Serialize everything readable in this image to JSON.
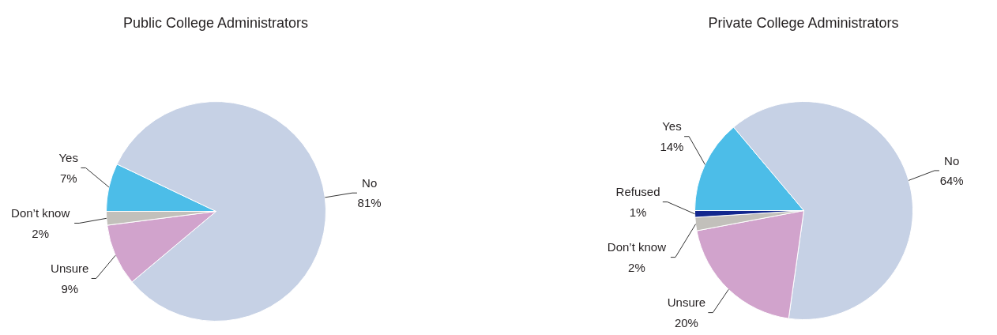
{
  "chart_data": [
    {
      "type": "pie",
      "title": "Public College Administrators",
      "categories": [
        "Yes",
        "No",
        "Unsure",
        "Don’t know"
      ],
      "values": [
        7,
        81,
        9,
        2
      ],
      "value_labels": [
        "7%",
        "81%",
        "9%",
        "2%"
      ],
      "colors": [
        "#4cbde8",
        "#c6d1e5",
        "#d1a3cc",
        "#c2c0bb"
      ]
    },
    {
      "type": "pie",
      "title": "Private College Administrators",
      "categories": [
        "Yes",
        "No",
        "Unsure",
        "Don’t know",
        "Refused"
      ],
      "values": [
        14,
        64,
        20,
        2,
        1
      ],
      "value_labels": [
        "14%",
        "64%",
        "20%",
        "2%",
        "1%"
      ],
      "colors": [
        "#4cbde8",
        "#c6d1e5",
        "#d1a3cc",
        "#c2c0bb",
        "#12278e"
      ]
    }
  ]
}
